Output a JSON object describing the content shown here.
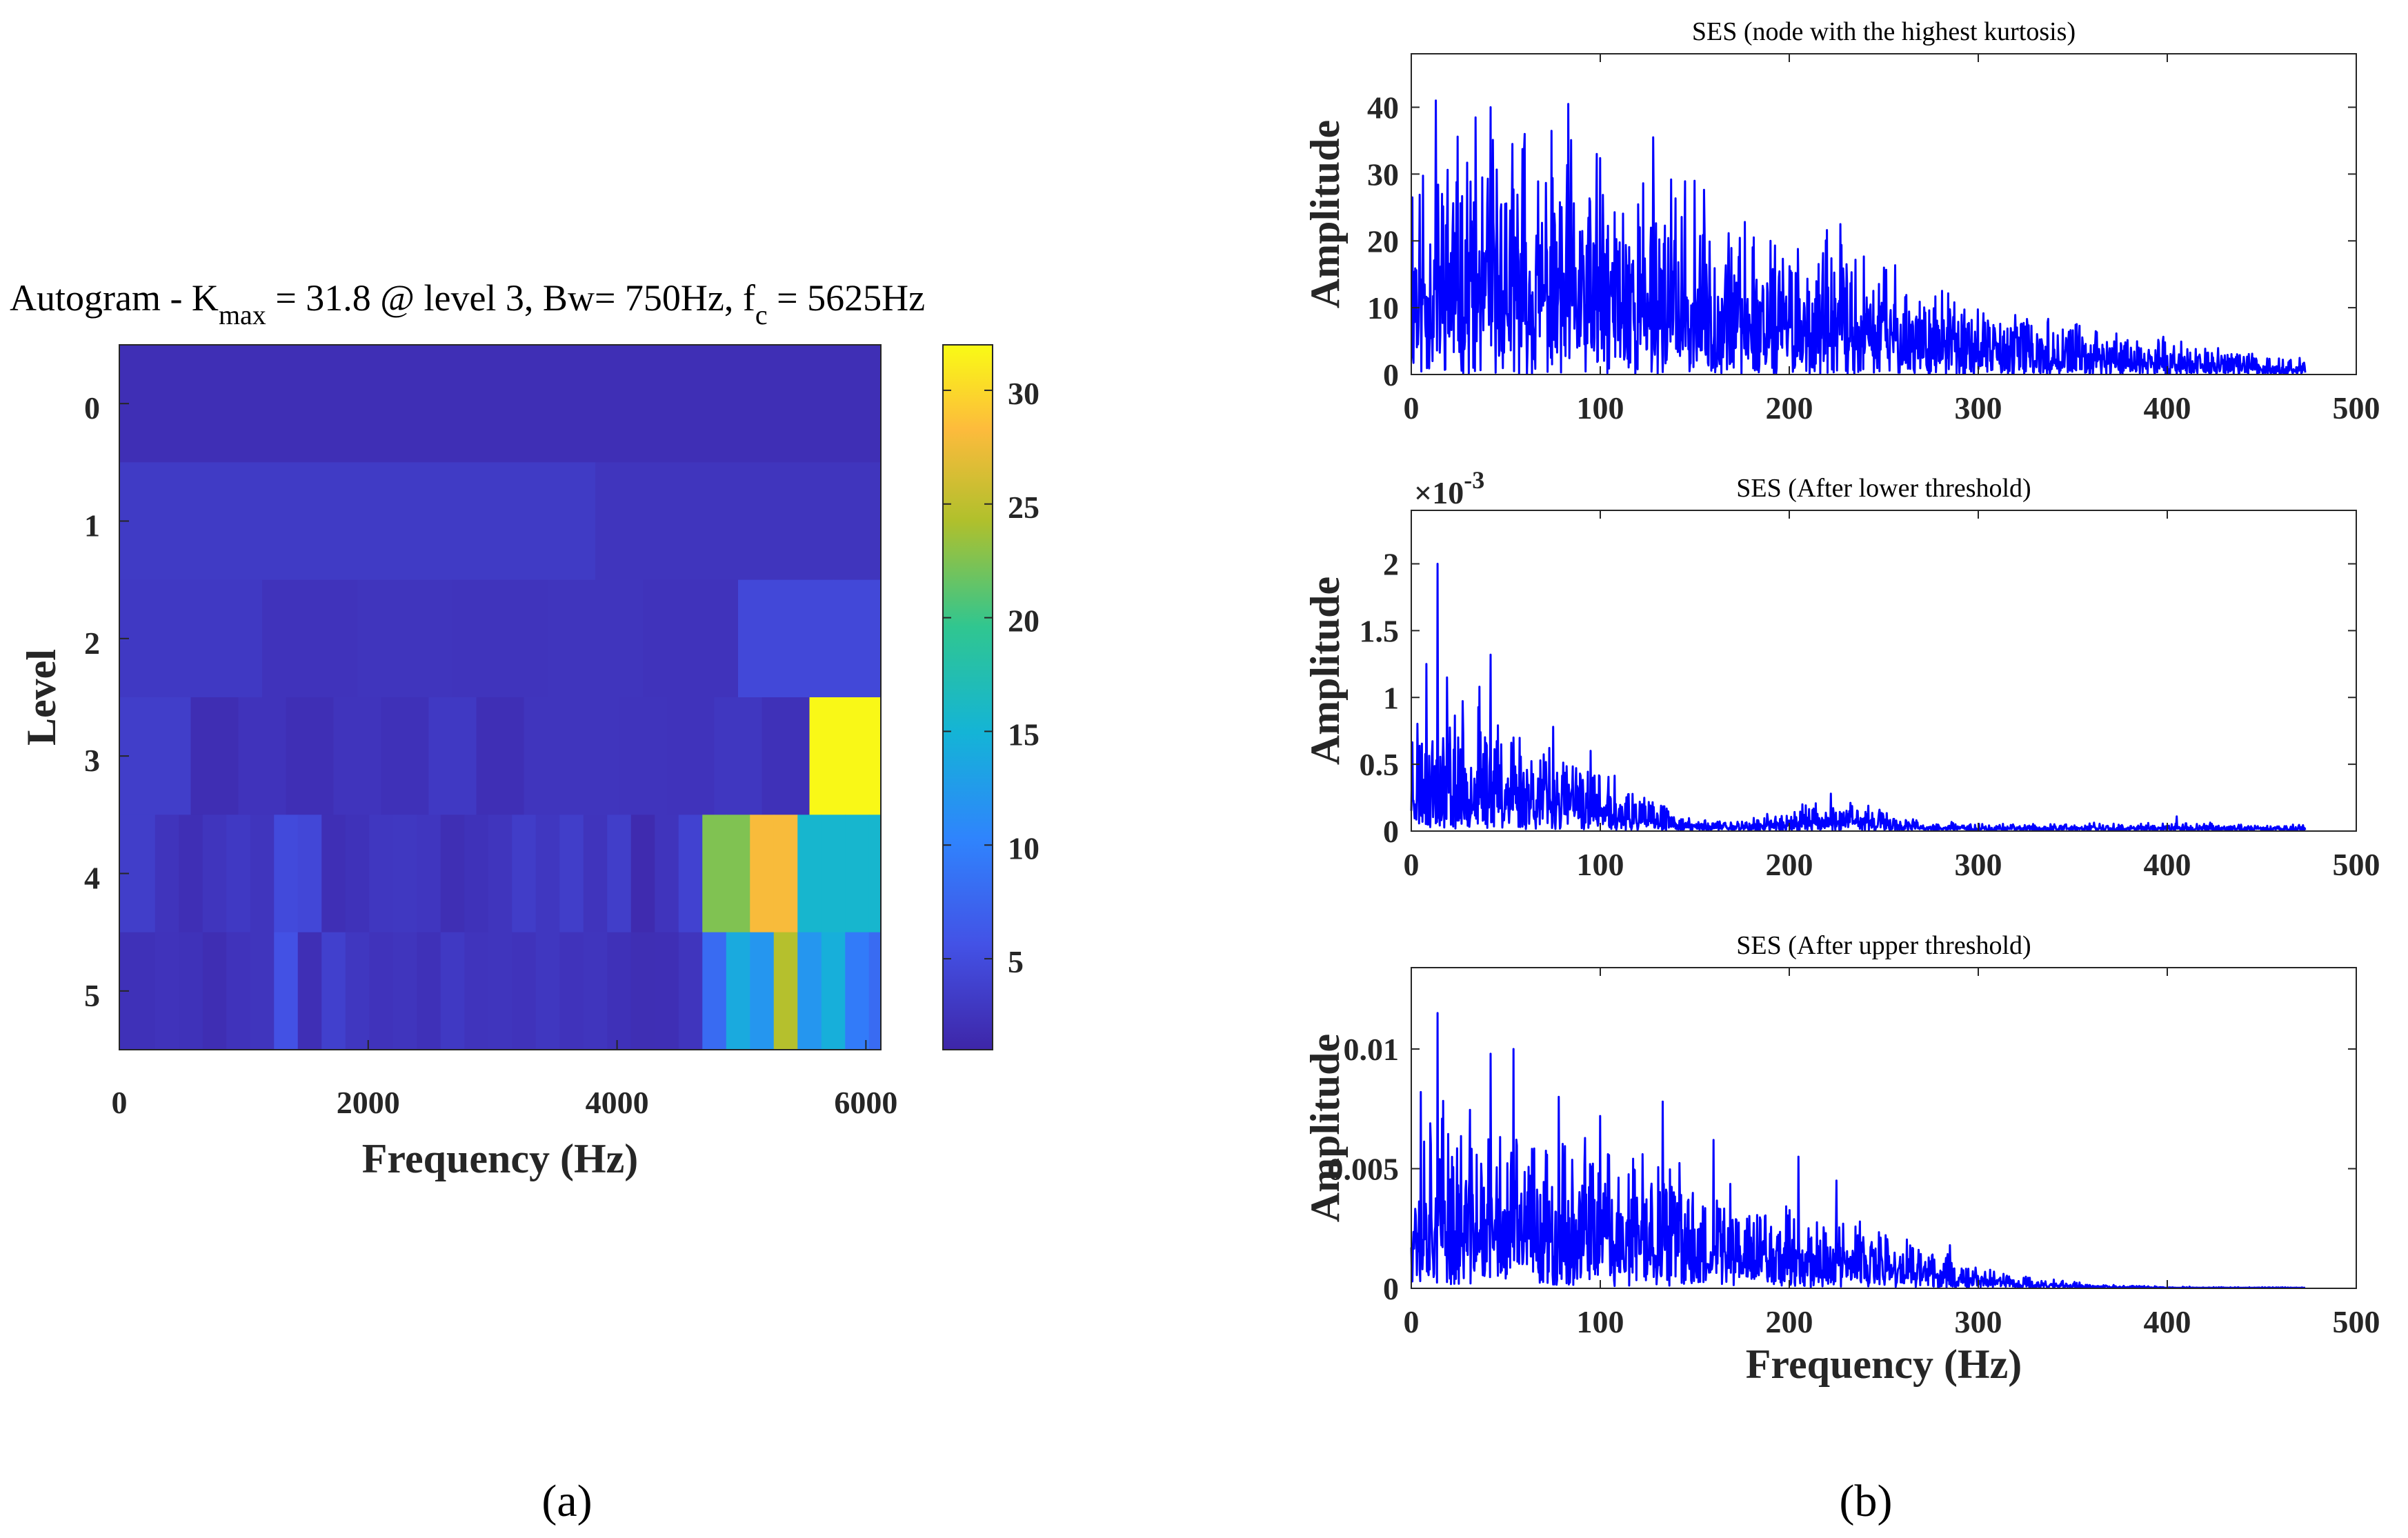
{
  "panel_labels": {
    "a": "(a)",
    "b": "(b)"
  },
  "chart_data": [
    {
      "type": "heatmap",
      "id": "autogram",
      "title": {
        "prefix": "Autogram - K",
        "sub": "max",
        "mid": " = 31.8 @ level 3, Bw= 750Hz, f",
        "sub2": "c",
        "suffix": " = 5625Hz"
      },
      "xlabel": "Frequency (Hz)",
      "ylabel": "Level",
      "xlim": [
        0,
        6000
      ],
      "xticks": [
        "0",
        "2000",
        "4000",
        "6000"
      ],
      "yticks": [
        "0",
        "1",
        "2",
        "3",
        "4",
        "5"
      ],
      "colorbar": {
        "range": [
          1,
          32
        ],
        "ticks": [
          "5",
          "10",
          "15",
          "20",
          "25",
          "30"
        ]
      },
      "rows": [
        [
          2.0
        ],
        [
          3.2,
          3.2,
          2.6,
          2.6
        ],
        [
          3.0,
          2.4,
          2.6,
          2.5,
          2.6,
          2.4,
          4.6,
          4.6
        ],
        [
          3.5,
          1.8,
          2.4,
          2.0,
          2.5,
          2.2,
          3.0,
          2.0,
          2.6,
          2.6,
          2.5,
          2.4,
          2.8,
          2.2,
          31.8,
          31.8
        ],
        [
          3.5,
          2.5,
          2.0,
          2.6,
          3.0,
          2.6,
          4.8,
          4.5,
          2.0,
          2.3,
          2.8,
          2.9,
          2.7,
          1.9,
          2.3,
          2.6,
          3.4,
          2.8,
          3.5,
          2.5,
          3.5,
          1.5,
          2.5,
          4.0,
          22.5,
          22.5,
          28.0,
          28.0,
          15.5,
          15.5,
          15.5,
          15.5
        ],
        [
          2.2,
          2.4,
          2.3,
          1.8,
          2.4,
          2.6,
          5.5,
          2.0,
          3.8,
          2.8,
          2.4,
          2.6,
          2.2,
          3.0,
          2.5,
          2.6,
          2.4,
          2.8,
          2.4,
          2.6,
          2.2,
          1.9,
          2.0,
          2.6,
          8.0,
          14.0,
          12.0,
          24.5,
          12.0,
          14.5,
          9.5,
          8.0
        ]
      ]
    },
    {
      "type": "line",
      "id": "ses-highest-kurtosis",
      "title": "SES (node with the highest kurtosis)",
      "xlabel": "",
      "ylabel": "Amplitude",
      "xlim": [
        0,
        500
      ],
      "ylim": [
        0,
        48
      ],
      "xticks": [
        "0",
        "100",
        "200",
        "300",
        "400",
        "500"
      ],
      "yticks": [
        [
          "0",
          0
        ],
        [
          "10",
          10
        ],
        [
          "20",
          20
        ],
        [
          "30",
          30
        ],
        [
          "40",
          40
        ]
      ],
      "series": [
        {
          "name": "SES",
          "color": "#0000ff",
          "x_range": [
            0,
            473
          ],
          "seed": 11,
          "envelope": [
            [
              0,
              16
            ],
            [
              60,
              15
            ],
            [
              120,
              13
            ],
            [
              180,
              10
            ],
            [
              240,
              7.5
            ],
            [
              300,
              4.5
            ],
            [
              360,
              3
            ],
            [
              420,
              1.8
            ],
            [
              473,
              1
            ]
          ],
          "noise": 0.75,
          "floor": 0.1,
          "spikes": [
            [
              13,
              41
            ],
            [
              42,
              40
            ],
            [
              83,
              40.5
            ],
            [
              60,
              36
            ],
            [
              128,
              35.5
            ],
            [
              98,
              33
            ],
            [
              150,
              29
            ],
            [
              227,
              22.5
            ],
            [
              190,
              20
            ],
            [
              250,
              16
            ]
          ]
        }
      ]
    },
    {
      "type": "line",
      "id": "ses-after-lower-threshold",
      "title": "SES (After lower threshold)",
      "xlabel": "",
      "ylabel": "Amplitude",
      "exponent": {
        "base": "×10",
        "power": "-3"
      },
      "xlim": [
        0,
        500
      ],
      "ylim": [
        0,
        0.0024
      ],
      "xticks": [
        "0",
        "100",
        "200",
        "300",
        "400",
        "500"
      ],
      "yticks": [
        [
          "0",
          0
        ],
        [
          "0.5",
          0.0005
        ],
        [
          "1",
          0.001
        ],
        [
          "1.5",
          0.0015
        ],
        [
          "2",
          0.002
        ]
      ],
      "series": [
        {
          "name": "SES",
          "color": "#0000ff",
          "x_range": [
            0,
            473
          ],
          "seed": 23,
          "envelope": [
            [
              0,
              0.00042
            ],
            [
              40,
              0.0004
            ],
            [
              80,
              0.00028
            ],
            [
              120,
              0.00012
            ],
            [
              150,
              4e-05
            ],
            [
              180,
              4e-05
            ],
            [
              210,
              9e-05
            ],
            [
              240,
              9e-05
            ],
            [
              270,
              3e-05
            ],
            [
              330,
              2.5e-05
            ],
            [
              400,
              3e-05
            ],
            [
              473,
              2e-05
            ]
          ],
          "noise": 0.7,
          "floor": 3e-06,
          "spikes": [
            [
              14,
              0.002
            ],
            [
              8,
              0.00125
            ],
            [
              42,
              0.00132
            ],
            [
              19,
              0.00115
            ],
            [
              36,
              0.00108
            ],
            [
              75,
              0.00078
            ],
            [
              54,
              0.0007
            ],
            [
              95,
              0.0006
            ],
            [
              222,
              0.00028
            ],
            [
              207,
              0.0002
            ],
            [
              405,
              0.00011
            ]
          ]
        }
      ]
    },
    {
      "type": "line",
      "id": "ses-after-upper-threshold",
      "title": "SES (After upper threshold)",
      "xlabel": "Frequency (Hz)",
      "ylabel": "Amplitude",
      "xlim": [
        0,
        500
      ],
      "ylim": [
        0,
        0.0134
      ],
      "xticks": [
        "0",
        "100",
        "200",
        "300",
        "400",
        "500"
      ],
      "yticks": [
        [
          "0",
          0
        ],
        [
          "0.005",
          0.005
        ],
        [
          "0.01",
          0.01
        ]
      ],
      "series": [
        {
          "name": "SES",
          "color": "#0000ff",
          "x_range": [
            0,
            473
          ],
          "seed": 37,
          "envelope": [
            [
              0,
              0.0034
            ],
            [
              60,
              0.003
            ],
            [
              120,
              0.0025
            ],
            [
              180,
              0.0019
            ],
            [
              240,
              0.0012
            ],
            [
              280,
              0.0007
            ],
            [
              320,
              0.00025
            ],
            [
              360,
              8e-05
            ],
            [
              400,
              3e-05
            ],
            [
              473,
              2e-05
            ]
          ],
          "noise": 0.7,
          "floor": 2e-05,
          "spikes": [
            [
              14,
              0.0115
            ],
            [
              42,
              0.0098
            ],
            [
              54,
              0.01
            ],
            [
              5,
              0.0082
            ],
            [
              78,
              0.008
            ],
            [
              133,
              0.0078
            ],
            [
              100,
              0.0072
            ],
            [
              160,
              0.0062
            ],
            [
              205,
              0.0055
            ],
            [
              225,
              0.0045
            ],
            [
              285,
              0.0018
            ]
          ]
        }
      ]
    }
  ]
}
